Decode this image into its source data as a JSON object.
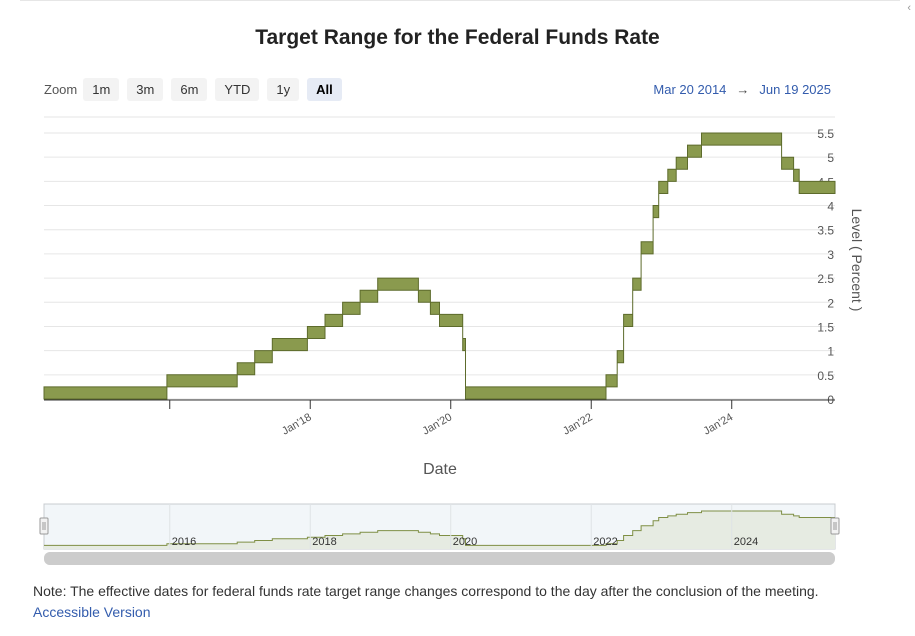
{
  "title": "Target Range for the Federal Funds Rate",
  "zoom": {
    "label": "Zoom",
    "buttons": [
      "1m",
      "3m",
      "6m",
      "YTD",
      "1y",
      "All"
    ],
    "active": "All"
  },
  "range": {
    "from": "Mar 20 2014",
    "arrow": "→",
    "to": "Jun 19 2025"
  },
  "note": "Note: The effective dates for federal funds rate target range changes correspond to the day after the conclusion of the meeting.",
  "accessible_link": "Accessible Version",
  "corner_mark": "‹",
  "colors": {
    "band_fill": "#8a9a4e",
    "band_stroke": "#5d6b2c",
    "nav_line": "#7f8f45",
    "link": "#335cad"
  },
  "chart_data": {
    "type": "area",
    "title": "Target Range for the Federal Funds Rate",
    "xlabel": "Date",
    "ylabel": "Level ( Percent )",
    "xlim": [
      2014.21,
      2025.47
    ],
    "ylim": [
      0,
      5.5
    ],
    "y_ticks": [
      "0",
      "0.5",
      "1",
      "1.5",
      "2",
      "2.5",
      "3",
      "3.5",
      "4",
      "4.5",
      "5",
      "5.5"
    ],
    "x_ticks": [
      {
        "label": "Jan'18",
        "x": 2018.0
      },
      {
        "label": "Jan'20",
        "x": 2020.0
      },
      {
        "label": "Jan'22",
        "x": 2022.0
      },
      {
        "label": "Jan'24",
        "x": 2024.0
      }
    ],
    "navigator_ticks": [
      {
        "label": "2016",
        "x": 2016.0
      },
      {
        "label": "2018",
        "x": 2018.0
      },
      {
        "label": "2020",
        "x": 2020.0
      },
      {
        "label": "2022",
        "x": 2022.0
      },
      {
        "label": "2024",
        "x": 2024.0
      }
    ],
    "series": [
      {
        "name": "Target range",
        "x": [
          2014.21,
          2015.96,
          2015.96,
          2016.96,
          2016.96,
          2017.21,
          2017.21,
          2017.46,
          2017.46,
          2017.96,
          2017.96,
          2018.21,
          2018.21,
          2018.46,
          2018.46,
          2018.71,
          2018.71,
          2018.96,
          2018.96,
          2019.54,
          2019.54,
          2019.71,
          2019.71,
          2019.84,
          2019.84,
          2020.17,
          2020.17,
          2020.21,
          2020.21,
          2022.21,
          2022.21,
          2022.37,
          2022.37,
          2022.46,
          2022.46,
          2022.59,
          2022.59,
          2022.71,
          2022.71,
          2022.88,
          2022.88,
          2022.96,
          2022.96,
          2023.09,
          2023.09,
          2023.21,
          2023.21,
          2023.37,
          2023.37,
          2023.57,
          2023.57,
          2024.71,
          2024.71,
          2024.88,
          2024.88,
          2024.96,
          2024.96,
          2025.47
        ],
        "lower": [
          0,
          0,
          0.25,
          0.25,
          0.5,
          0.5,
          0.75,
          0.75,
          1.0,
          1.0,
          1.25,
          1.25,
          1.5,
          1.5,
          1.75,
          1.75,
          2.0,
          2.0,
          2.25,
          2.25,
          2.0,
          2.0,
          1.75,
          1.75,
          1.5,
          1.5,
          1.0,
          1.0,
          0,
          0,
          0.25,
          0.25,
          0.75,
          0.75,
          1.5,
          1.5,
          2.25,
          2.25,
          3.0,
          3.0,
          3.75,
          3.75,
          4.25,
          4.25,
          4.5,
          4.5,
          4.75,
          4.75,
          5.0,
          5.0,
          5.25,
          5.25,
          4.75,
          4.75,
          4.5,
          4.5,
          4.25,
          4.25
        ],
        "upper": [
          0.25,
          0.25,
          0.5,
          0.5,
          0.75,
          0.75,
          1.0,
          1.0,
          1.25,
          1.25,
          1.5,
          1.5,
          1.75,
          1.75,
          2.0,
          2.0,
          2.25,
          2.25,
          2.5,
          2.5,
          2.25,
          2.25,
          2.0,
          2.0,
          1.75,
          1.75,
          1.25,
          1.25,
          0.25,
          0.25,
          0.5,
          0.5,
          1.0,
          1.0,
          1.75,
          1.75,
          2.5,
          2.5,
          3.25,
          3.25,
          4.0,
          4.0,
          4.5,
          4.5,
          4.75,
          4.75,
          5.0,
          5.0,
          5.25,
          5.25,
          5.5,
          5.5,
          5.0,
          5.0,
          4.75,
          4.75,
          4.5,
          4.5
        ]
      }
    ]
  }
}
